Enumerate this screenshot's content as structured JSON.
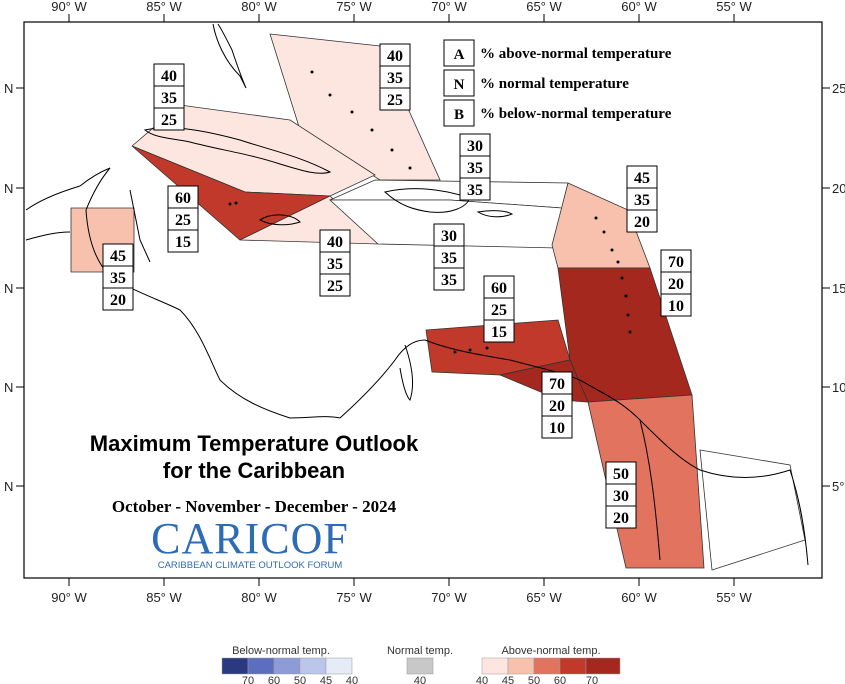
{
  "map": {
    "title_line1": "Maximum Temperature Outlook",
    "title_line2": "for the Caribbean",
    "period": "October - November - December - 2024",
    "logo": {
      "name": "CARICOF",
      "tagline": "CARIBBEAN CLIMATE OUTLOOK FORUM",
      "color": "#2e6bb5"
    },
    "top_axis": [
      "90° W",
      "85° W",
      "80° W",
      "75° W",
      "70° W",
      "65° W",
      "60° W",
      "55° W"
    ],
    "bottom_axis": [
      "90° W",
      "85° W",
      "80° W",
      "75° W",
      "70° W",
      "65° W",
      "60° W",
      "55° W"
    ],
    "left_axis": [
      "N",
      "N",
      "N",
      "N",
      "N"
    ],
    "right_axis": [
      "25°",
      "20°",
      "15°",
      "10°",
      "5°"
    ],
    "legend": [
      {
        "key": "A",
        "text": "% above-normal temperature"
      },
      {
        "key": "N",
        "text": "% normal temperature"
      },
      {
        "key": "B",
        "text": "% below-normal temperature"
      }
    ],
    "regions": [
      {
        "name": "bahamas",
        "fill": "#fde6df",
        "probs": [
          "40",
          "35",
          "25"
        ]
      },
      {
        "name": "cuba",
        "fill": "#fde6df",
        "probs": [
          "40",
          "35",
          "25"
        ]
      },
      {
        "name": "cayman-islands",
        "fill": "#c0392b",
        "probs": [
          "60",
          "25",
          "15"
        ]
      },
      {
        "name": "jamaica",
        "fill": "#fde6df",
        "probs": [
          "40",
          "35",
          "25"
        ]
      },
      {
        "name": "turks-caicos",
        "fill": "#ffffff",
        "probs": [
          "30",
          "35",
          "35"
        ]
      },
      {
        "name": "hispaniola-puerto-rico",
        "fill": "#ffffff",
        "probs": [
          "30",
          "35",
          "35"
        ]
      },
      {
        "name": "leeward-islands",
        "fill": "#f8c1ad",
        "probs": [
          "45",
          "35",
          "20"
        ]
      },
      {
        "name": "windward-islands",
        "fill": "#a5281f",
        "probs": [
          "70",
          "20",
          "10"
        ]
      },
      {
        "name": "belize",
        "fill": "#f8c1ad",
        "probs": [
          "45",
          "35",
          "20"
        ]
      },
      {
        "name": "abc-islands",
        "fill": "#c0392b",
        "probs": [
          "60",
          "25",
          "15"
        ]
      },
      {
        "name": "trinidad-tobago",
        "fill": "#a5281f",
        "probs": [
          "70",
          "20",
          "10"
        ]
      },
      {
        "name": "guianas",
        "fill": "#e2735e",
        "probs": [
          "50",
          "30",
          "20"
        ]
      }
    ]
  },
  "colorbar": {
    "below_title": "Below-normal temp.",
    "normal_title": "Normal temp.",
    "above_title": "Above-normal temp.",
    "below_colors": [
      "#2b3a80",
      "#5c6fbf",
      "#8d9bd6",
      "#bcc6ea",
      "#e6ebf8"
    ],
    "below_ticks": [
      "70",
      "60",
      "50",
      "45",
      "40"
    ],
    "normal_color": "#c8c8c8",
    "normal_tick": "40",
    "above_colors": [
      "#fde6df",
      "#f8c1ad",
      "#e2735e",
      "#c0392b",
      "#a5281f"
    ],
    "above_ticks": [
      "40",
      "45",
      "50",
      "60",
      "70"
    ]
  }
}
